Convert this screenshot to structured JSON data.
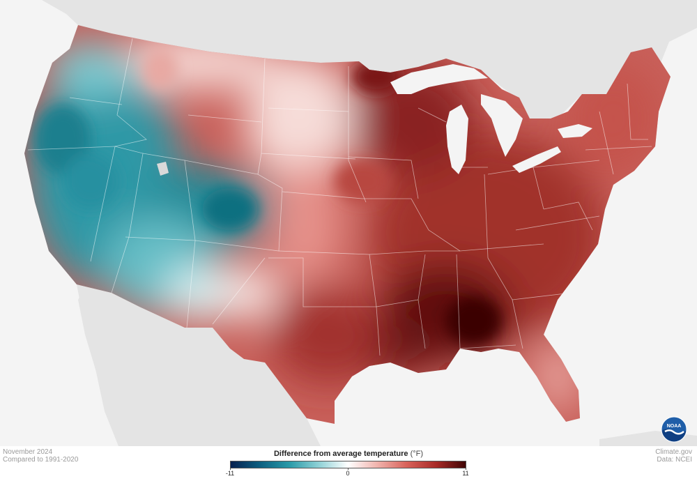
{
  "meta": {
    "date": "November 2024",
    "comparison": "Compared to 1991-2020",
    "source_site": "Climate.gov",
    "data_source": "Data: NCEI"
  },
  "legend": {
    "title": "Difference from average temperature",
    "unit": "(°F)",
    "min_label": "-11",
    "mid_label": "0",
    "max_label": "11",
    "min": -11,
    "max": 11,
    "colors": [
      "#08214f",
      "#0d5f80",
      "#2a9aa8",
      "#8fd1d6",
      "#ffffff",
      "#f0b2ac",
      "#d8625a",
      "#a82a27",
      "#400505"
    ]
  },
  "logo": {
    "text": "NOAA"
  },
  "map_colors": {
    "ocean": "#f4f4f4",
    "neighbor_land": "#e4e4e4",
    "great_lakes": "#f4f4f4",
    "state_border": "#ffffff"
  }
}
